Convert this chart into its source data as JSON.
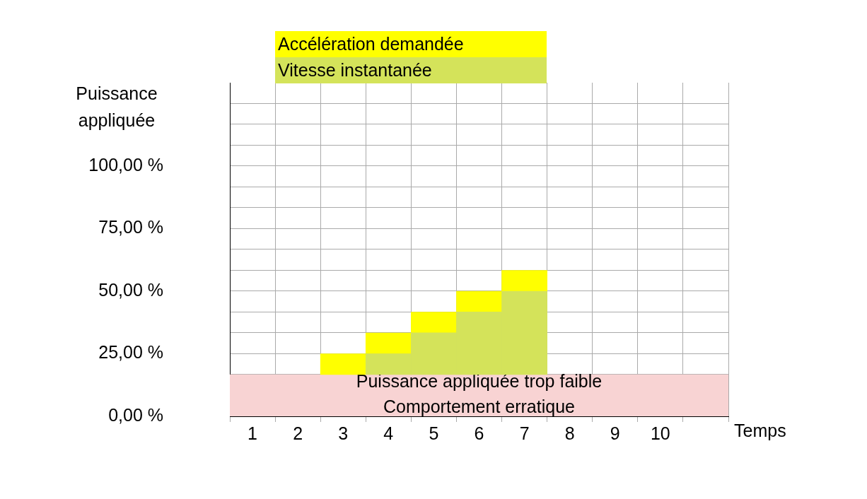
{
  "chart_data": {
    "type": "bar",
    "ylabel": "Puissance appliquée",
    "xlabel": "Temps",
    "categories": [
      "1",
      "2",
      "3",
      "4",
      "5",
      "6",
      "7",
      "8",
      "9",
      "10",
      null
    ],
    "series": [
      {
        "name": "Vitesse instantanée",
        "color": "#d4e35a",
        "base": [
          null,
          null,
          null,
          16.7,
          16.7,
          16.7,
          16.7,
          null,
          null,
          null,
          null
        ],
        "values": [
          null,
          null,
          null,
          8.3,
          16.7,
          25,
          33.3,
          null,
          null,
          null,
          null
        ]
      },
      {
        "name": "Accélération demandée",
        "color": "#ffff00",
        "base": [
          null,
          null,
          16.7,
          25,
          33.3,
          41.7,
          50,
          null,
          null,
          null,
          null
        ],
        "values": [
          null,
          null,
          8.3,
          8.3,
          8.3,
          8.3,
          8.3,
          null,
          null,
          null,
          null
        ]
      }
    ],
    "ylim": [
      0,
      133.3
    ],
    "yticks": [
      {
        "value": 0,
        "label": "0,00 %"
      },
      {
        "value": 16.67,
        "label": null
      },
      {
        "value": 25,
        "label": "25,00 %"
      },
      {
        "value": 33.33,
        "label": null
      },
      {
        "value": 41.67,
        "label": null
      },
      {
        "value": 50,
        "label": "50,00 %"
      },
      {
        "value": 58.33,
        "label": null
      },
      {
        "value": 66.67,
        "label": null
      },
      {
        "value": 75,
        "label": "75,00 %"
      },
      {
        "value": 83.33,
        "label": null
      },
      {
        "value": 91.67,
        "label": null
      },
      {
        "value": 100,
        "label": "100,00 %"
      },
      {
        "value": 108.33,
        "label": null
      },
      {
        "value": 116.67,
        "label": null
      },
      {
        "value": 125,
        "label": null
      }
    ],
    "bands": [
      {
        "axis": "y",
        "from": 0,
        "to": 16.7,
        "label": "Puissance appliquée trop faible\nComportement erratique",
        "color": "#f8d3d3"
      }
    ],
    "grid": true,
    "legend": "top left"
  }
}
